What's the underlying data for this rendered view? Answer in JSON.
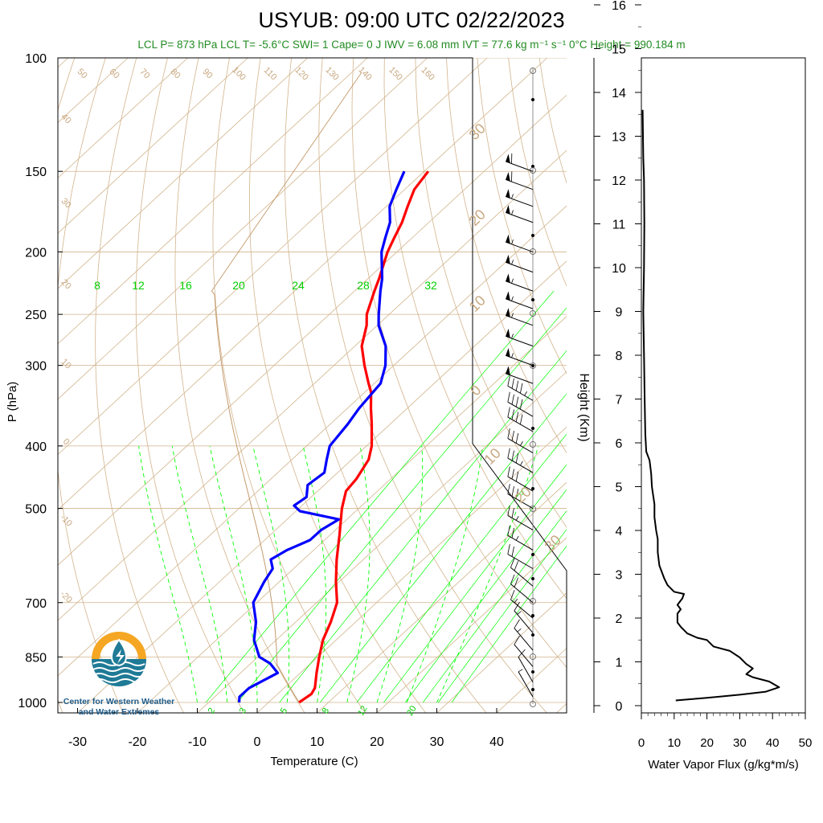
{
  "title": "USYUB: 09:00 UTC 02/22/2023",
  "subtitle": "LCL P= 873 hPa  LCL T= -5.6°C  SWI= 1  Cape= 0 J  IWV = 6.08 mm  IVT = 77.6 kg m⁻¹ s⁻¹  0°C Height = 990.184 m",
  "logo": {
    "line1": "Center for Western Weather",
    "line2": "and Water Extremes",
    "ring_color": "#f5a623",
    "wave_color": "#1f7a96"
  },
  "colors": {
    "temperature": "#ff0000",
    "dewpoint": "#0000ff",
    "isotherm_skew": "#d2b48c",
    "mixing_ratio": "#00ff00",
    "label_green": "#00d000",
    "label_tan": "#c8a880",
    "flux": "#000000"
  },
  "chart_data": [
    {
      "type": "line",
      "name": "skew-t",
      "xlabel": "Temperature (C)",
      "ylabel": "P (hPa)",
      "xticks": [
        -30,
        -20,
        -10,
        0,
        10,
        20,
        30,
        40
      ],
      "yticks": [
        100,
        150,
        200,
        250,
        300,
        400,
        500,
        700,
        850,
        1000
      ],
      "ylim": [
        1000,
        100
      ],
      "scale": "log-pressure, skewed temperature",
      "mixing_ratio_labels_top": [
        "8",
        "12",
        "16",
        "20",
        "24",
        "28",
        "32"
      ],
      "mixing_ratio_labels_bottom": [
        "2",
        "3",
        "5",
        "8",
        "12",
        "20"
      ],
      "adiabat_labels_top": [
        "50",
        "60",
        "70",
        "80",
        "90",
        "100",
        "110",
        "120",
        "130",
        "140",
        "150",
        "160"
      ],
      "isotherm_labels_left": [
        "40",
        "30",
        "20",
        "10",
        "0",
        "-10",
        "-20"
      ],
      "isotherm_labels_right": [
        "30",
        "20",
        "10",
        "0",
        "10",
        "20",
        "30"
      ],
      "series": [
        {
          "name": "temperature",
          "points": [
            [
              1000,
              7
            ],
            [
              970,
              7.5
            ],
            [
              950,
              7
            ],
            [
              900,
              4.5
            ],
            [
              850,
              2
            ],
            [
              800,
              -0.5
            ],
            [
              750,
              -2.5
            ],
            [
              700,
              -5
            ],
            [
              650,
              -9
            ],
            [
              600,
              -13
            ],
            [
              550,
              -17
            ],
            [
              500,
              -21.5
            ],
            [
              470,
              -24
            ],
            [
              450,
              -24.5
            ],
            [
              420,
              -26
            ],
            [
              400,
              -28
            ],
            [
              370,
              -32
            ],
            [
              350,
              -35
            ],
            [
              330,
              -38
            ],
            [
              320,
              -40
            ],
            [
              300,
              -44
            ],
            [
              280,
              -48
            ],
            [
              260,
              -51
            ],
            [
              250,
              -53
            ],
            [
              230,
              -56
            ],
            [
              220,
              -57.5
            ],
            [
              200,
              -61
            ],
            [
              190,
              -62.5
            ],
            [
              180,
              -64
            ],
            [
              170,
              -66
            ],
            [
              160,
              -68
            ],
            [
              150,
              -69
            ]
          ]
        },
        {
          "name": "dewpoint",
          "points": [
            [
              1000,
              -3
            ],
            [
              980,
              -4
            ],
            [
              950,
              -4
            ],
            [
              900,
              -2
            ],
            [
              870,
              -5
            ],
            [
              850,
              -8
            ],
            [
              800,
              -12
            ],
            [
              750,
              -15
            ],
            [
              700,
              -19
            ],
            [
              650,
              -21
            ],
            [
              620,
              -22
            ],
            [
              600,
              -24
            ],
            [
              580,
              -23
            ],
            [
              560,
              -21
            ],
            [
              540,
              -21
            ],
            [
              520,
              -20
            ],
            [
              505,
              -28
            ],
            [
              495,
              -30
            ],
            [
              480,
              -29.5
            ],
            [
              460,
              -31.5
            ],
            [
              440,
              -31
            ],
            [
              420,
              -33
            ],
            [
              400,
              -35
            ],
            [
              370,
              -36
            ],
            [
              350,
              -37
            ],
            [
              320,
              -38
            ],
            [
              300,
              -40.5
            ],
            [
              280,
              -44
            ],
            [
              260,
              -49
            ],
            [
              250,
              -51
            ],
            [
              230,
              -55
            ],
            [
              220,
              -57
            ],
            [
              200,
              -62
            ],
            [
              190,
              -64
            ],
            [
              180,
              -66
            ],
            [
              170,
              -69
            ],
            [
              160,
              -71
            ],
            [
              150,
              -73
            ]
          ]
        }
      ],
      "wind_barbs": [
        {
          "p": 150,
          "speed": 60,
          "dir": 290
        },
        {
          "p": 160,
          "speed": 60,
          "dir": 290
        },
        {
          "p": 170,
          "speed": 55,
          "dir": 290
        },
        {
          "p": 180,
          "speed": 55,
          "dir": 290
        },
        {
          "p": 200,
          "speed": 55,
          "dir": 290
        },
        {
          "p": 215,
          "speed": 55,
          "dir": 290
        },
        {
          "p": 230,
          "speed": 55,
          "dir": 290
        },
        {
          "p": 245,
          "speed": 55,
          "dir": 290
        },
        {
          "p": 260,
          "speed": 55,
          "dir": 290
        },
        {
          "p": 280,
          "speed": 55,
          "dir": 290
        },
        {
          "p": 300,
          "speed": 55,
          "dir": 290
        },
        {
          "p": 320,
          "speed": 50,
          "dir": 290
        },
        {
          "p": 340,
          "speed": 45,
          "dir": 300
        },
        {
          "p": 360,
          "speed": 40,
          "dir": 300
        },
        {
          "p": 380,
          "speed": 40,
          "dir": 300
        },
        {
          "p": 410,
          "speed": 35,
          "dir": 300
        },
        {
          "p": 440,
          "speed": 35,
          "dir": 300
        },
        {
          "p": 470,
          "speed": 30,
          "dir": 300
        },
        {
          "p": 500,
          "speed": 30,
          "dir": 300
        },
        {
          "p": 540,
          "speed": 25,
          "dir": 300
        },
        {
          "p": 580,
          "speed": 25,
          "dir": 300
        },
        {
          "p": 620,
          "speed": 20,
          "dir": 300
        },
        {
          "p": 660,
          "speed": 20,
          "dir": 310
        },
        {
          "p": 700,
          "speed": 20,
          "dir": 310
        },
        {
          "p": 740,
          "speed": 15,
          "dir": 310
        },
        {
          "p": 780,
          "speed": 15,
          "dir": 320
        },
        {
          "p": 830,
          "speed": 15,
          "dir": 320
        },
        {
          "p": 880,
          "speed": 10,
          "dir": 320
        },
        {
          "p": 930,
          "speed": 10,
          "dir": 330
        },
        {
          "p": 980,
          "speed": 5,
          "dir": 330
        }
      ]
    },
    {
      "type": "line",
      "name": "water-vapor-flux",
      "xlabel": "Water Vapor Flux (g/kg*m/s)",
      "ylabel": "Height (Km)",
      "xlim": [
        0,
        50
      ],
      "ylim": [
        0,
        16.3
      ],
      "xticks": [
        0,
        10,
        20,
        30,
        40,
        50
      ],
      "yticks": [
        0,
        1,
        2,
        3,
        4,
        5,
        6,
        7,
        8,
        9,
        10,
        11,
        12,
        13,
        14,
        15,
        16
      ],
      "points": [
        [
          10.5,
          0.12
        ],
        [
          20,
          0.18
        ],
        [
          30,
          0.25
        ],
        [
          38,
          0.32
        ],
        [
          42,
          0.42
        ],
        [
          39,
          0.55
        ],
        [
          34,
          0.65
        ],
        [
          32,
          0.72
        ],
        [
          34,
          0.85
        ],
        [
          32,
          0.95
        ],
        [
          30,
          1.1
        ],
        [
          27,
          1.25
        ],
        [
          22,
          1.35
        ],
        [
          20,
          1.5
        ],
        [
          17,
          1.55
        ],
        [
          14,
          1.65
        ],
        [
          12,
          1.8
        ],
        [
          11,
          1.9
        ],
        [
          11,
          2.1
        ],
        [
          12,
          2.2
        ],
        [
          11,
          2.3
        ],
        [
          12.5,
          2.45
        ],
        [
          13,
          2.55
        ],
        [
          10,
          2.6
        ],
        [
          8,
          2.75
        ],
        [
          7,
          2.9
        ],
        [
          5.5,
          3.2
        ],
        [
          5,
          3.5
        ],
        [
          5,
          3.8
        ],
        [
          4.5,
          4.0
        ],
        [
          4,
          4.3
        ],
        [
          4,
          4.6
        ],
        [
          3.2,
          5.0
        ],
        [
          3,
          5.3
        ],
        [
          2.5,
          5.6
        ],
        [
          1.5,
          5.8
        ],
        [
          1.2,
          6.2
        ],
        [
          1.0,
          7.0
        ],
        [
          0.8,
          8.0
        ],
        [
          0.6,
          9.0
        ],
        [
          0.8,
          10.0
        ],
        [
          0.9,
          11.0
        ],
        [
          0.8,
          12.0
        ],
        [
          0.6,
          12.5
        ],
        [
          0.5,
          13.0
        ],
        [
          0.4,
          13.6
        ]
      ]
    }
  ]
}
